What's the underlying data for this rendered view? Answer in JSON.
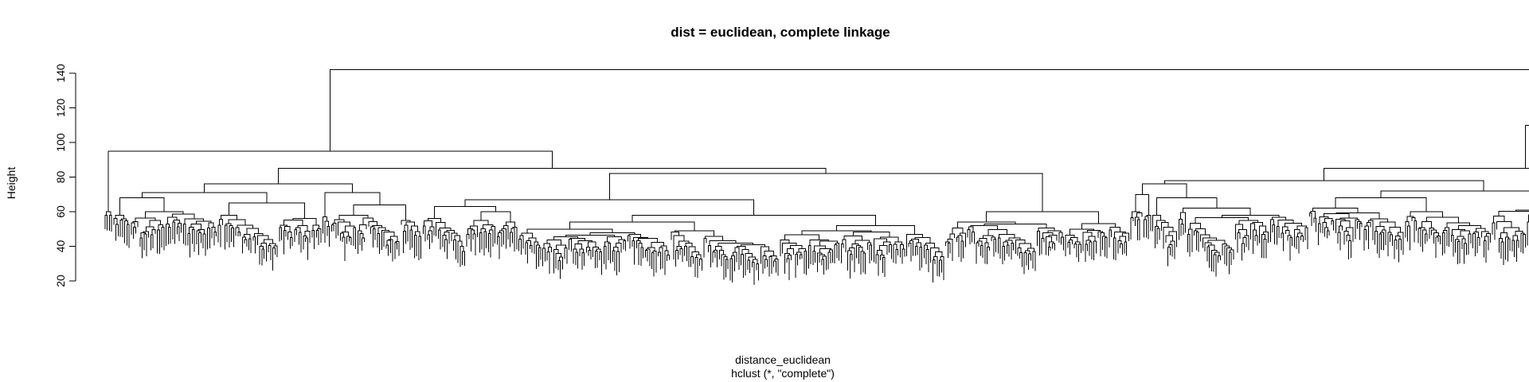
{
  "chart_data": {
    "type": "dendrogram",
    "title": "dist = euclidean, complete linkage",
    "ylabel": "Height",
    "xlabel": "distance_euclidean",
    "sub": "hclust (*, \"complete\")",
    "ylim": [
      20,
      145
    ],
    "yticks": [
      20,
      40,
      60,
      80,
      100,
      120,
      140
    ],
    "leaf_count": 620,
    "merges": [
      {
        "id": "root",
        "height": 142,
        "children": [
          "L",
          "R"
        ]
      },
      {
        "id": "L",
        "height": 95,
        "children": [
          "Lsmall",
          "LA"
        ]
      },
      {
        "id": "Lsmall",
        "height": 60,
        "children": [
          "leafgroup"
        ]
      },
      {
        "id": "LA",
        "height": 85,
        "children": [
          "LA1",
          "LA2"
        ]
      },
      {
        "id": "LA1",
        "height": 76,
        "children": [
          "LA1a",
          "LA1b"
        ]
      },
      {
        "id": "LA1a",
        "height": 71,
        "children": [
          "subtree"
        ]
      },
      {
        "id": "LA1b",
        "height": 71,
        "children": [
          "subtree"
        ]
      },
      {
        "id": "LA2",
        "height": 82,
        "children": [
          "LA2a",
          "LA2b"
        ]
      },
      {
        "id": "LA2a",
        "height": 63,
        "children": [
          "subtree"
        ]
      },
      {
        "id": "LA2b",
        "height": 58,
        "children": [
          "subtree"
        ]
      },
      {
        "id": "R",
        "height": 110,
        "children": [
          "RA",
          "RB"
        ]
      },
      {
        "id": "RA",
        "height": 85,
        "children": [
          "RA1",
          "RA2"
        ]
      },
      {
        "id": "RA1",
        "height": 78,
        "children": [
          "RA1a",
          "RA1b"
        ]
      },
      {
        "id": "RA1a",
        "height": 76,
        "children": [
          "subtree"
        ]
      },
      {
        "id": "RA1b",
        "height": 72,
        "children": [
          "subtree"
        ]
      },
      {
        "id": "RA2",
        "height": 82,
        "children": [
          "subtree"
        ]
      },
      {
        "id": "RB",
        "height": 91,
        "children": [
          "RB1",
          "RB2"
        ]
      },
      {
        "id": "RB1",
        "height": 78,
        "children": [
          "subtree"
        ]
      },
      {
        "id": "RB2",
        "height": 74,
        "children": [
          "subtree"
        ]
      }
    ]
  }
}
